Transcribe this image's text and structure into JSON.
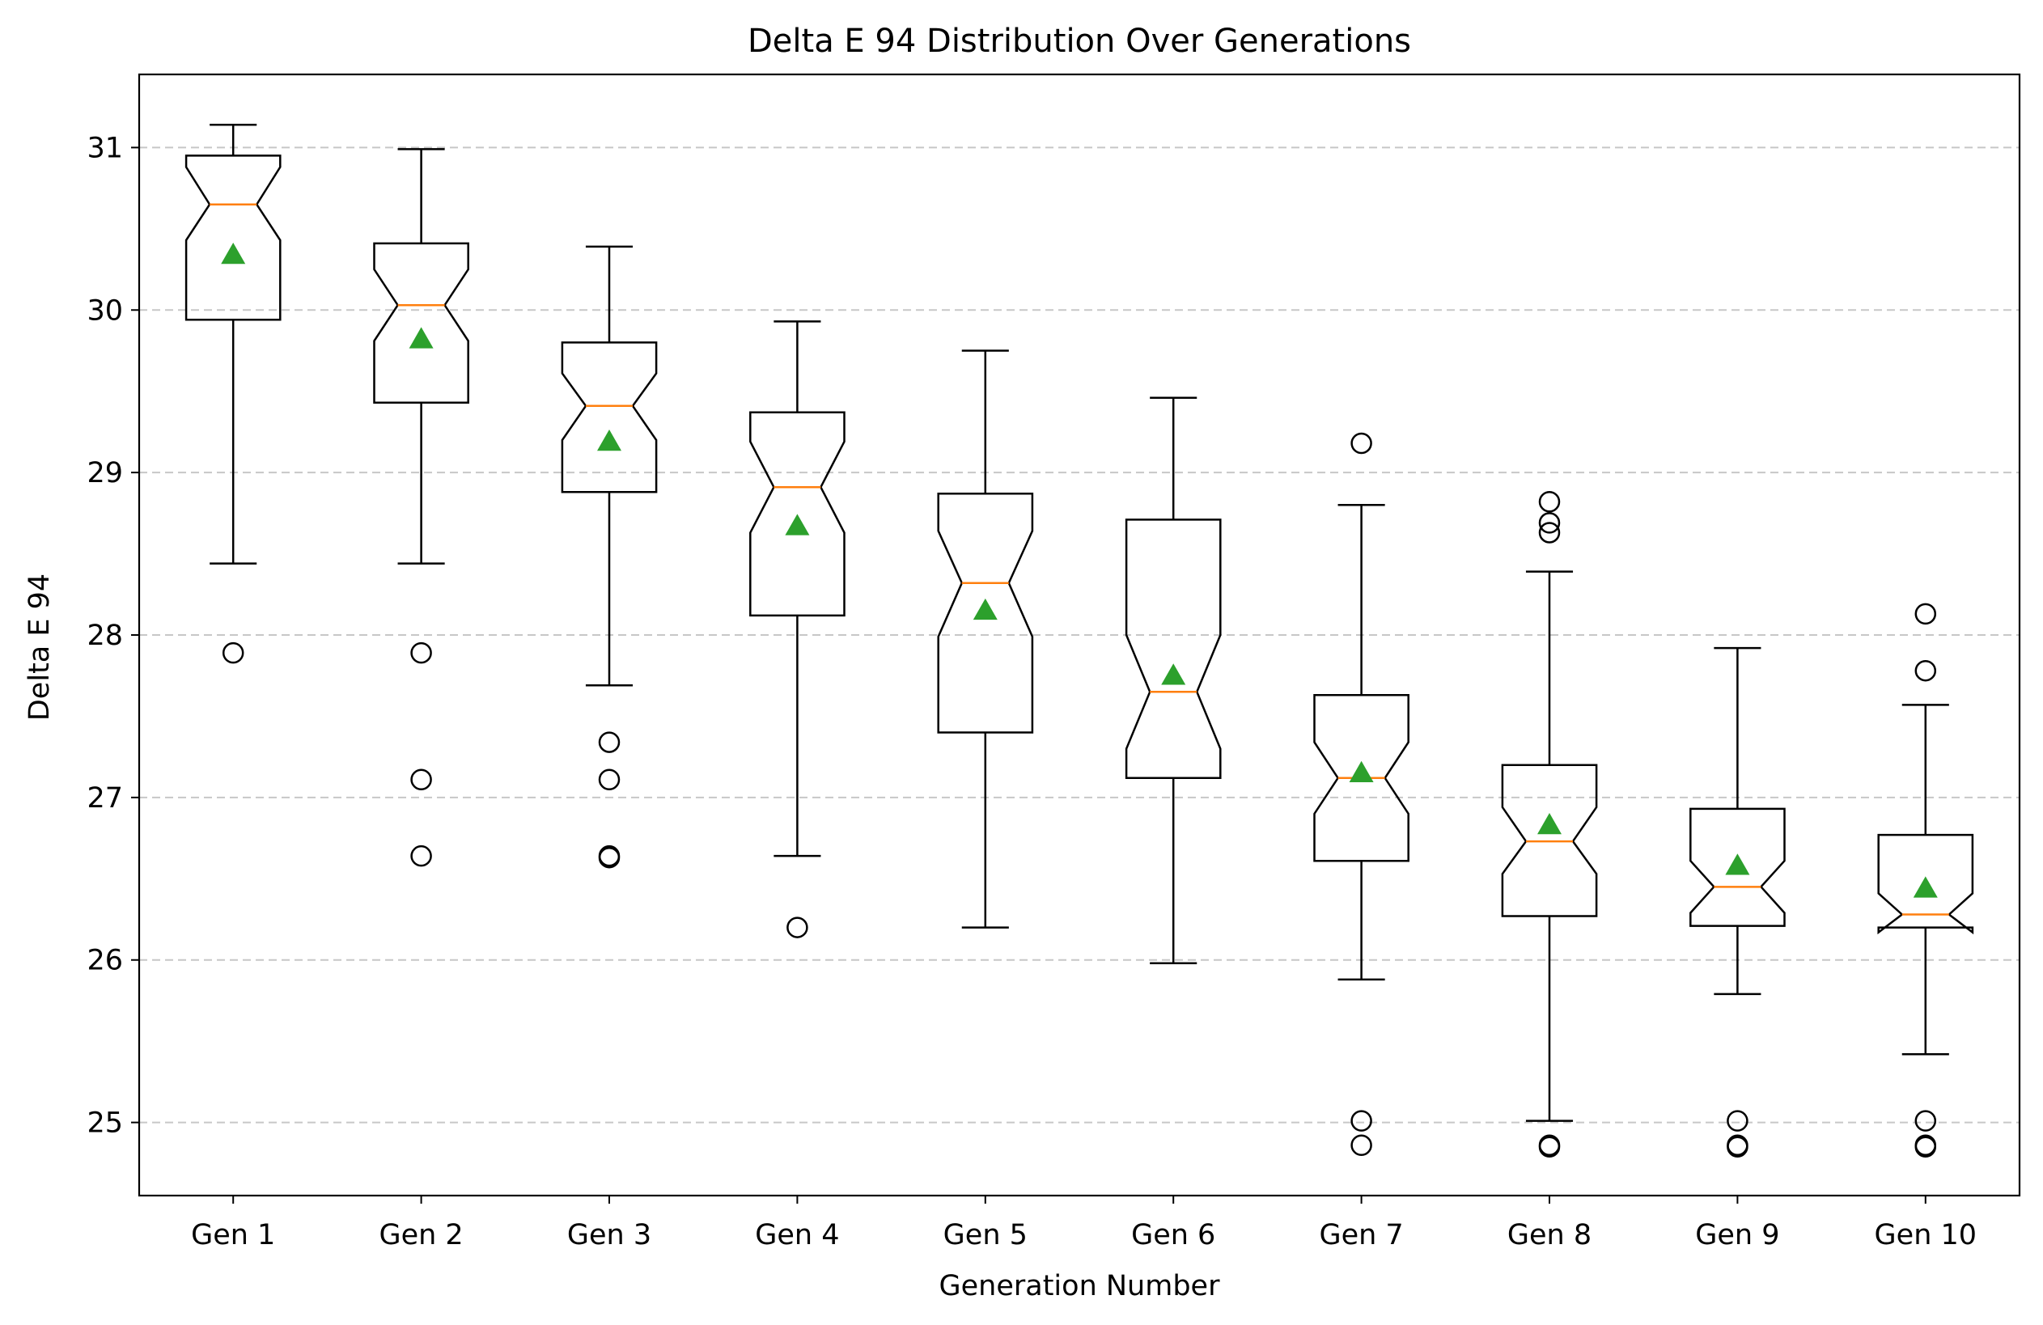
{
  "chart_data": {
    "type": "boxplot",
    "title": "Delta E 94 Distribution Over Generations",
    "xlabel": "Generation Number",
    "ylabel": "Delta E 94",
    "ylim": [
      24.55,
      31.45
    ],
    "yticks": [
      25,
      26,
      27,
      28,
      29,
      30,
      31
    ],
    "grid": "y-dashed",
    "notched": true,
    "show_means": true,
    "colors": {
      "box": "#000000",
      "median": "#ff7f0e",
      "mean": "#2ca02c",
      "grid": "#c7c7c7"
    },
    "categories": [
      "Gen 1",
      "Gen 2",
      "Gen 3",
      "Gen 4",
      "Gen 5",
      "Gen 6",
      "Gen 7",
      "Gen 8",
      "Gen 9",
      "Gen 10"
    ],
    "boxes": [
      {
        "whislo": 28.44,
        "q1": 29.94,
        "med": 30.65,
        "q3": 30.95,
        "whishi": 31.14,
        "cilo": 30.43,
        "cihi": 30.88,
        "mean": 30.34,
        "fliers": [
          27.89
        ]
      },
      {
        "whislo": 28.44,
        "q1": 29.43,
        "med": 30.03,
        "q3": 30.41,
        "whishi": 30.99,
        "cilo": 29.81,
        "cihi": 30.25,
        "mean": 29.82,
        "fliers": [
          27.89,
          27.11,
          26.64
        ]
      },
      {
        "whislo": 27.69,
        "q1": 28.88,
        "med": 29.41,
        "q3": 29.8,
        "whishi": 30.39,
        "cilo": 29.2,
        "cihi": 29.61,
        "mean": 29.19,
        "fliers": [
          27.34,
          27.11,
          26.64,
          26.63
        ]
      },
      {
        "whislo": 26.64,
        "q1": 28.12,
        "med": 28.91,
        "q3": 29.37,
        "whishi": 29.93,
        "cilo": 28.63,
        "cihi": 29.19,
        "mean": 28.67,
        "fliers": [
          26.2
        ]
      },
      {
        "whislo": 26.2,
        "q1": 27.4,
        "med": 28.32,
        "q3": 28.87,
        "whishi": 29.75,
        "cilo": 27.99,
        "cihi": 28.64,
        "mean": 28.15,
        "fliers": []
      },
      {
        "whislo": 25.98,
        "q1": 27.12,
        "med": 27.65,
        "q3": 28.71,
        "whishi": 29.46,
        "cilo": 27.3,
        "cihi": 28.0,
        "mean": 27.75,
        "fliers": []
      },
      {
        "whislo": 25.88,
        "q1": 26.61,
        "med": 27.12,
        "q3": 27.63,
        "whishi": 28.8,
        "cilo": 26.9,
        "cihi": 27.34,
        "mean": 27.15,
        "fliers": [
          29.18,
          25.01,
          24.86
        ]
      },
      {
        "whislo": 25.01,
        "q1": 26.27,
        "med": 26.73,
        "q3": 27.2,
        "whishi": 28.39,
        "cilo": 26.53,
        "cihi": 26.94,
        "mean": 26.83,
        "fliers": [
          28.82,
          28.69,
          28.63,
          24.86,
          24.85
        ]
      },
      {
        "whislo": 25.79,
        "q1": 26.21,
        "med": 26.45,
        "q3": 26.93,
        "whishi": 27.92,
        "cilo": 26.29,
        "cihi": 26.61,
        "mean": 26.58,
        "fliers": [
          25.01,
          24.86,
          24.85
        ]
      },
      {
        "whislo": 25.42,
        "q1": 26.2,
        "med": 26.28,
        "q3": 26.77,
        "whishi": 27.57,
        "cilo": 26.17,
        "cihi": 26.41,
        "mean": 26.44,
        "fliers": [
          28.13,
          27.78,
          25.01,
          24.86,
          24.85
        ]
      }
    ]
  }
}
